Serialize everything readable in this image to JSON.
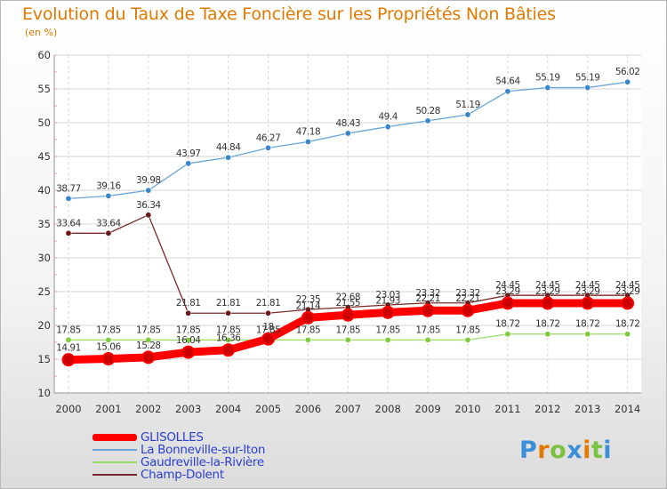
{
  "header": {
    "title": "Evolution du Taux de Taxe Foncière sur les Propriétés Non Bâties",
    "unit": "(en %)"
  },
  "chart_data": {
    "type": "line",
    "title": "Evolution du Taux de Taxe Foncière sur les Propriétés Non Bâties",
    "ylabel": "(en %)",
    "xlabel": "",
    "ylim": [
      10,
      60
    ],
    "yticks": [
      10,
      15,
      20,
      25,
      30,
      35,
      40,
      45,
      50,
      55,
      60
    ],
    "grid": true,
    "legend_position": "bottom-left",
    "x": [
      2000,
      2001,
      2002,
      2003,
      2004,
      2005,
      2006,
      2007,
      2008,
      2009,
      2010,
      2011,
      2012,
      2013,
      2014
    ],
    "series": [
      {
        "name": "GLISOLLES",
        "color": "#ff0000",
        "marker_color": "#cc0000",
        "emphasis": true,
        "values": [
          14.91,
          15.06,
          15.28,
          16.04,
          16.36,
          18,
          21.14,
          21.55,
          21.93,
          22.21,
          22.21,
          23.29,
          23.29,
          23.29,
          23.29
        ],
        "labels": [
          "14.91",
          "15.06",
          "15.28",
          "16.04",
          "16.36",
          "18",
          "21.14",
          "21.55",
          "21.93",
          "22.21",
          "22.21",
          "23.29",
          "23.29",
          "23.29",
          "23.29"
        ]
      },
      {
        "name": "La Bonneville-sur-Iton",
        "color": "#6aa6d8",
        "marker_color": "#3a86c8",
        "values": [
          38.77,
          39.16,
          39.98,
          43.97,
          44.84,
          46.27,
          47.18,
          48.43,
          49.4,
          50.28,
          51.19,
          54.64,
          55.19,
          55.19,
          56.02
        ],
        "labels": [
          "38.77",
          "39.16",
          "39.98",
          "43.97",
          "44.84",
          "46.27",
          "47.18",
          "48.43",
          "49.4",
          "50.28",
          "51.19",
          "54.64",
          "55.19",
          "55.19",
          "56.02"
        ]
      },
      {
        "name": "Gaudreville-la-Rivière",
        "color": "#99dd66",
        "marker_color": "#7ccc3e",
        "values": [
          17.85,
          17.85,
          17.85,
          17.85,
          17.85,
          17.85,
          17.85,
          17.85,
          17.85,
          17.85,
          17.85,
          18.72,
          18.72,
          18.72,
          18.72
        ],
        "labels": [
          "17.85",
          "17.85",
          "17.85",
          "17.85",
          "17.85",
          "17.85",
          "17.85",
          "17.85",
          "17.85",
          "17.85",
          "17.85",
          "18.72",
          "18.72",
          "18.72",
          "18.72"
        ]
      },
      {
        "name": "Champ-Dolent",
        "color": "#7a2a2a",
        "marker_color": "#6a1a1a",
        "values": [
          33.64,
          33.64,
          36.34,
          21.81,
          21.81,
          21.81,
          22.35,
          22.68,
          23.03,
          23.32,
          23.32,
          24.45,
          24.45,
          24.45,
          24.45
        ],
        "labels": [
          "33.64",
          "33.64",
          "36.34",
          "21.81",
          "21.81",
          "21.81",
          "22.35",
          "22.68",
          "23.03",
          "23.32",
          "23.32",
          "24.45",
          "24.45",
          "24.45",
          "24.45"
        ]
      }
    ]
  },
  "legend": {
    "items": [
      {
        "label": "GLISOLLES",
        "color": "#ff0000"
      },
      {
        "label": "La Bonneville-sur-Iton",
        "color": "#6aa6d8"
      },
      {
        "label": "Gaudreville-la-Rivière",
        "color": "#99dd66"
      },
      {
        "label": "Champ-Dolent",
        "color": "#7a2a2a"
      }
    ]
  },
  "logo": {
    "text": "Proxiti",
    "colors": [
      "#3a8fd8",
      "#e07a00",
      "#7cc242",
      "#3a8fd8",
      "#e07a00",
      "#7cc242",
      "#3a8fd8"
    ]
  }
}
